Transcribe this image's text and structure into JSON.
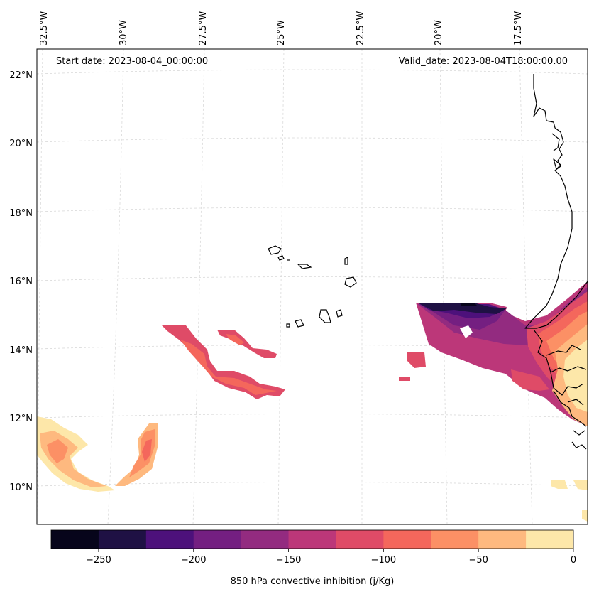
{
  "map": {
    "start_label": "Start date: 2023-08-04_00:00:00",
    "valid_label": "Valid_date: 2023-08-04T18:00:00.00",
    "lon_ticks": [
      "32.5°W",
      "30°W",
      "27.5°W",
      "25°W",
      "22.5°W",
      "20°W",
      "17.5°W"
    ],
    "lat_ticks": [
      "22°N",
      "20°N",
      "18°N",
      "16°N",
      "14°N",
      "12°N",
      "10°N"
    ],
    "gridlines": true,
    "projection": "Lambert conformal",
    "coastline_color": "#000000"
  },
  "colorbar": {
    "label": "850 hPa convective inhibition (j/Kg)",
    "ticks": [
      "−250",
      "−200",
      "−150",
      "−100",
      "−50",
      "0"
    ],
    "tick_values": [
      -250,
      -200,
      -150,
      -100,
      -50,
      0
    ],
    "range": [
      -275,
      0
    ],
    "colors": [
      "#07051b",
      "#1f1144",
      "#4d117b",
      "#741f81",
      "#932b80",
      "#bc3779",
      "#df4b67",
      "#f4675c",
      "#fc9065",
      "#feb97f",
      "#fde7a9"
    ],
    "placement": "bottom"
  }
}
